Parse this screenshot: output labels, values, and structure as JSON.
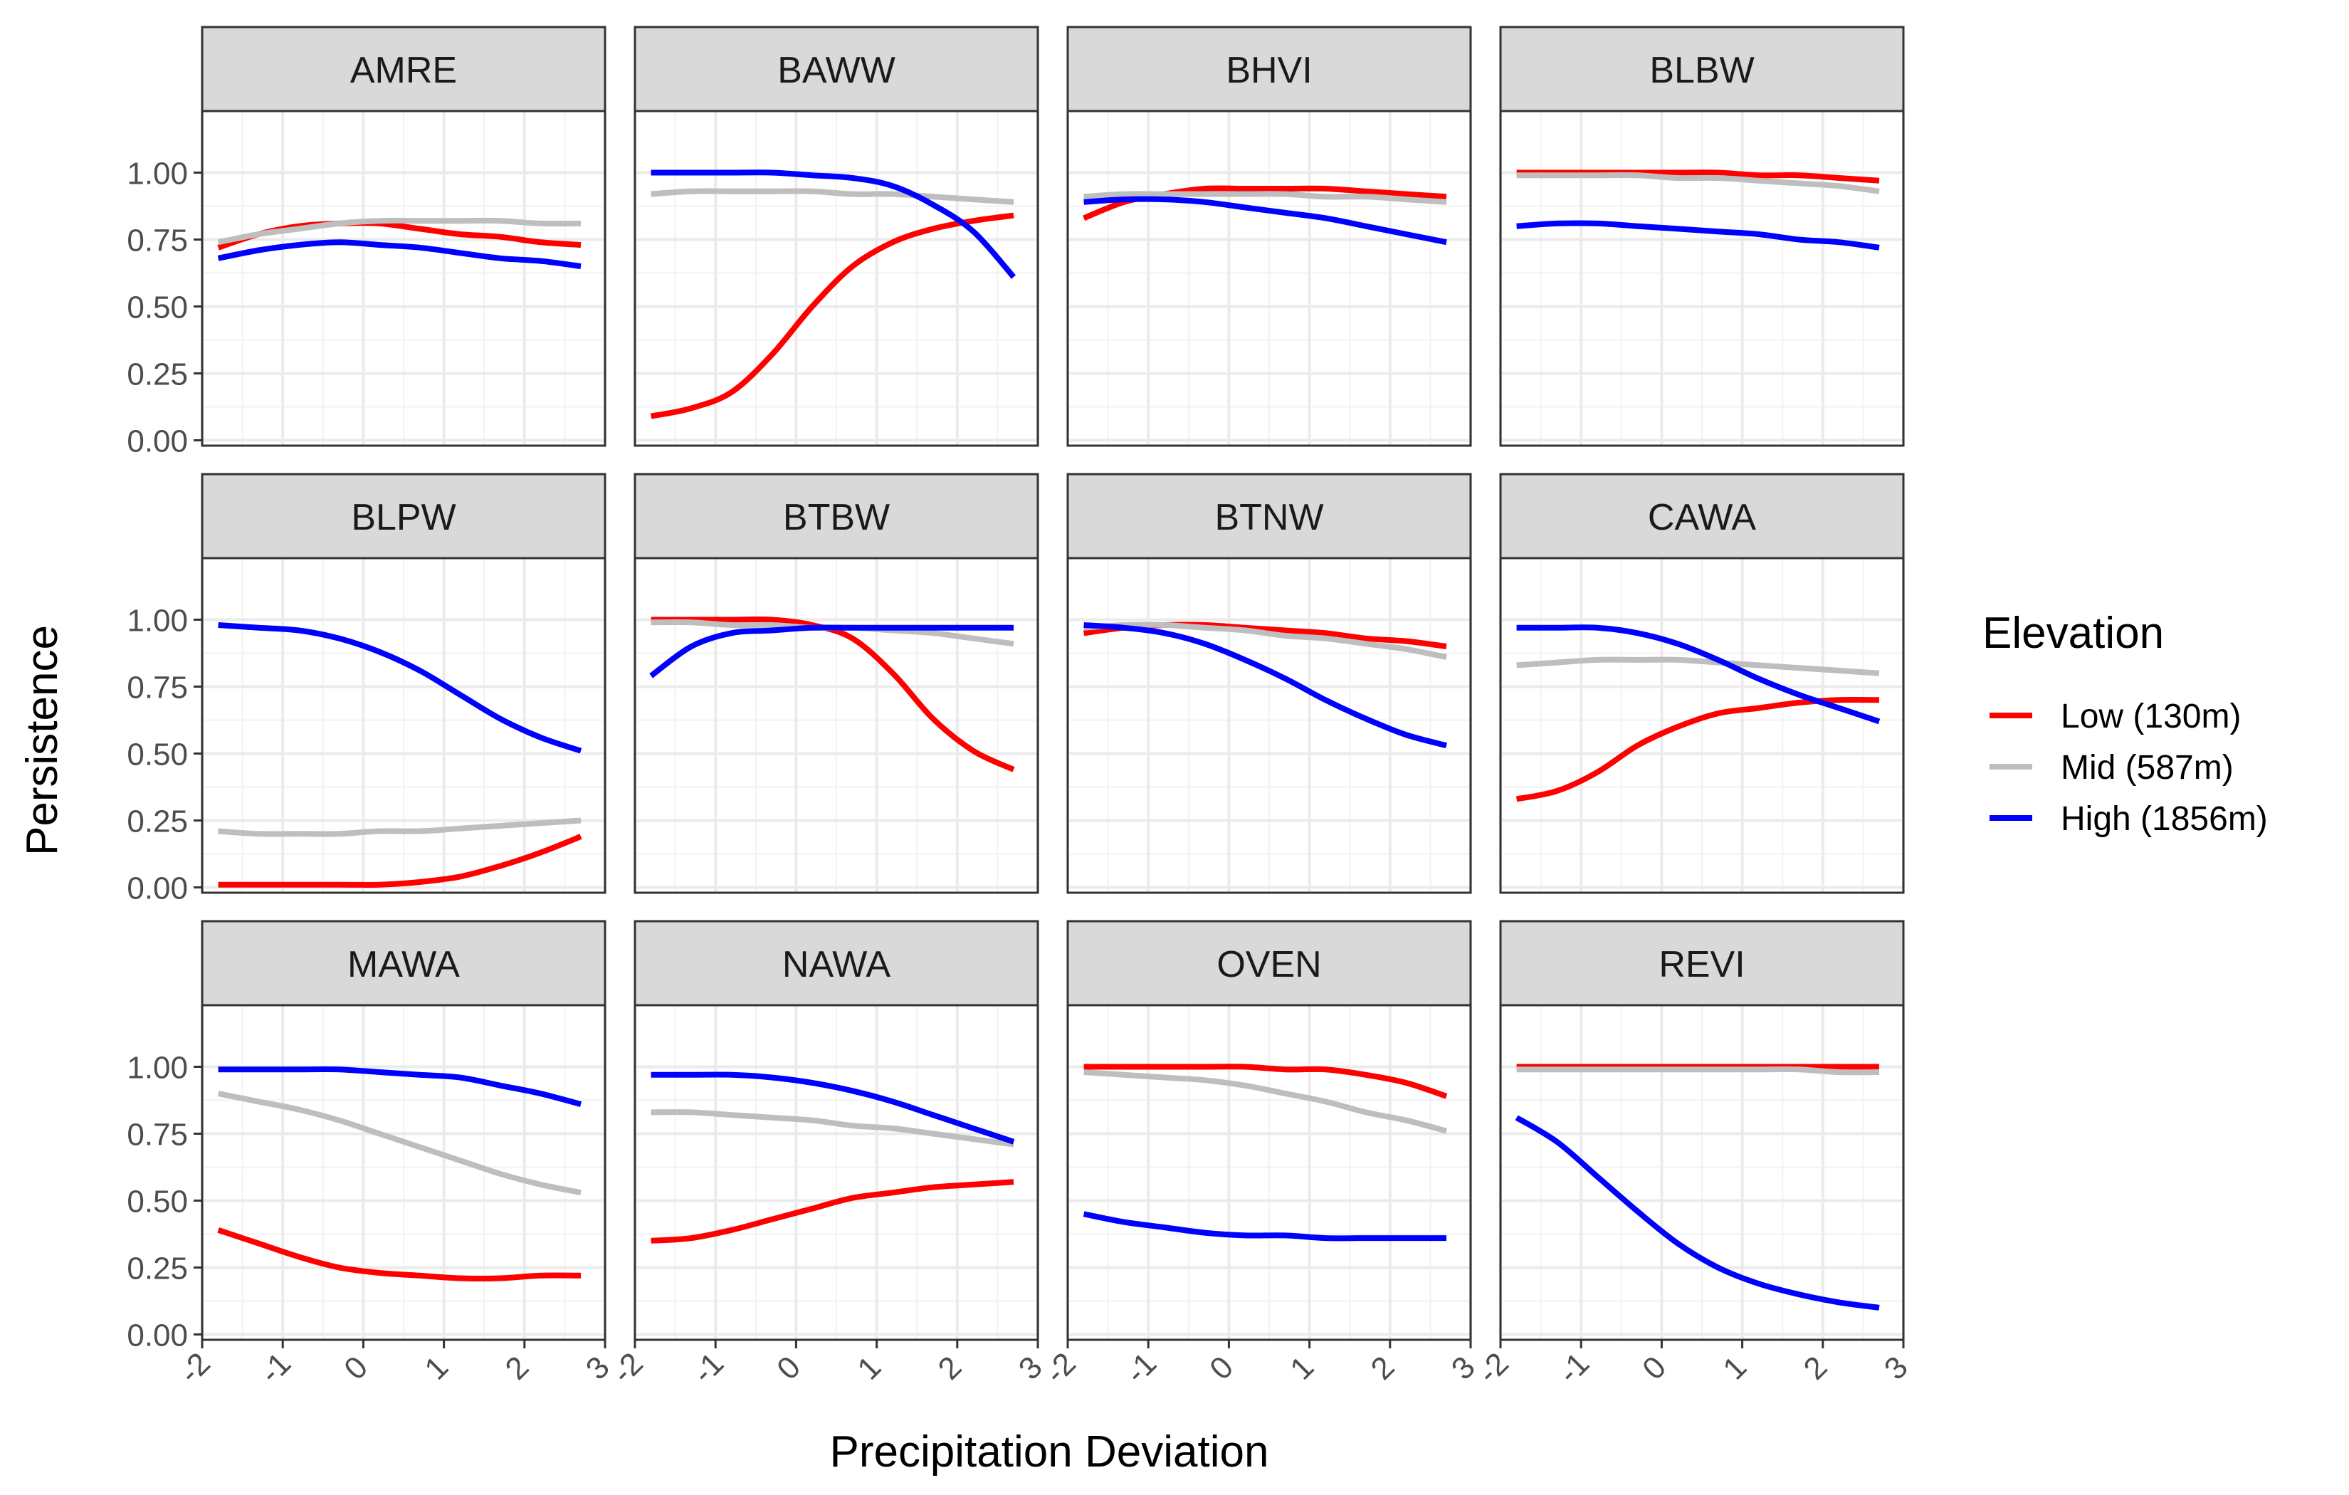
{
  "chart_data": {
    "type": "line",
    "layout": "facet_wrap 3x4",
    "ylabel": "Persistence",
    "xlabel": "Precipitation Deviation",
    "xlim": [
      -2,
      3
    ],
    "ylim": [
      0,
      1
    ],
    "x_ticks": [
      -2,
      -1,
      0,
      1,
      2,
      3
    ],
    "y_ticks": [
      "0.00",
      "0.25",
      "0.50",
      "0.75",
      "1.00"
    ],
    "x_tick_labels": [
      "-2",
      "-1",
      "0",
      "1",
      "2",
      "3"
    ],
    "grid": true,
    "legend": {
      "title": "Elevation",
      "placement": "right",
      "entries": [
        "Low (130m)",
        "Mid (587m)",
        "High (1856m)"
      ]
    },
    "series_colors": {
      "Low (130m)": "#ff0000",
      "Mid (587m)": "#bebebe",
      "High (1856m)": "#0000ff"
    },
    "x": [
      -1.8,
      -1.3,
      -0.8,
      -0.3,
      0.2,
      0.7,
      1.2,
      1.7,
      2.2,
      2.7
    ],
    "facets": [
      {
        "name": "AMRE",
        "series": [
          {
            "name": "Low (130m)",
            "values": [
              0.72,
              0.77,
              0.8,
              0.81,
              0.81,
              0.79,
              0.77,
              0.76,
              0.74,
              0.73
            ]
          },
          {
            "name": "Mid (587m)",
            "values": [
              0.74,
              0.77,
              0.79,
              0.81,
              0.82,
              0.82,
              0.82,
              0.82,
              0.81,
              0.81
            ]
          },
          {
            "name": "High (1856m)",
            "values": [
              0.68,
              0.71,
              0.73,
              0.74,
              0.73,
              0.72,
              0.7,
              0.68,
              0.67,
              0.65
            ]
          }
        ]
      },
      {
        "name": "BAWW",
        "series": [
          {
            "name": "Low (130m)",
            "values": [
              0.09,
              0.12,
              0.18,
              0.32,
              0.5,
              0.65,
              0.74,
              0.79,
              0.82,
              0.84
            ]
          },
          {
            "name": "Mid (587m)",
            "values": [
              0.92,
              0.93,
              0.93,
              0.93,
              0.93,
              0.92,
              0.92,
              0.91,
              0.9,
              0.89
            ]
          },
          {
            "name": "High (1856m)",
            "values": [
              1.0,
              1.0,
              1.0,
              1.0,
              0.99,
              0.98,
              0.95,
              0.88,
              0.78,
              0.61
            ]
          }
        ]
      },
      {
        "name": "BHVI",
        "series": [
          {
            "name": "Low (130m)",
            "values": [
              0.83,
              0.89,
              0.92,
              0.94,
              0.94,
              0.94,
              0.94,
              0.93,
              0.92,
              0.91
            ]
          },
          {
            "name": "Mid (587m)",
            "values": [
              0.91,
              0.92,
              0.92,
              0.92,
              0.92,
              0.92,
              0.91,
              0.91,
              0.9,
              0.89
            ]
          },
          {
            "name": "High (1856m)",
            "values": [
              0.89,
              0.9,
              0.9,
              0.89,
              0.87,
              0.85,
              0.83,
              0.8,
              0.77,
              0.74
            ]
          }
        ]
      },
      {
        "name": "BLBW",
        "series": [
          {
            "name": "Low (130m)",
            "values": [
              1.0,
              1.0,
              1.0,
              1.0,
              1.0,
              1.0,
              0.99,
              0.99,
              0.98,
              0.97
            ]
          },
          {
            "name": "Mid (587m)",
            "values": [
              0.99,
              0.99,
              0.99,
              0.99,
              0.98,
              0.98,
              0.97,
              0.96,
              0.95,
              0.93
            ]
          },
          {
            "name": "High (1856m)",
            "values": [
              0.8,
              0.81,
              0.81,
              0.8,
              0.79,
              0.78,
              0.77,
              0.75,
              0.74,
              0.72
            ]
          }
        ]
      },
      {
        "name": "BLPW",
        "series": [
          {
            "name": "Low (130m)",
            "values": [
              0.01,
              0.01,
              0.01,
              0.01,
              0.01,
              0.02,
              0.04,
              0.08,
              0.13,
              0.19
            ]
          },
          {
            "name": "Mid (587m)",
            "values": [
              0.21,
              0.2,
              0.2,
              0.2,
              0.21,
              0.21,
              0.22,
              0.23,
              0.24,
              0.25
            ]
          },
          {
            "name": "High (1856m)",
            "values": [
              0.98,
              0.97,
              0.96,
              0.93,
              0.88,
              0.81,
              0.72,
              0.63,
              0.56,
              0.51
            ]
          }
        ]
      },
      {
        "name": "BTBW",
        "series": [
          {
            "name": "Low (130m)",
            "values": [
              1.0,
              1.0,
              1.0,
              1.0,
              0.98,
              0.93,
              0.8,
              0.63,
              0.51,
              0.44
            ]
          },
          {
            "name": "Mid (587m)",
            "values": [
              0.99,
              0.99,
              0.98,
              0.98,
              0.97,
              0.97,
              0.96,
              0.95,
              0.93,
              0.91
            ]
          },
          {
            "name": "High (1856m)",
            "values": [
              0.79,
              0.9,
              0.95,
              0.96,
              0.97,
              0.97,
              0.97,
              0.97,
              0.97,
              0.97
            ]
          }
        ]
      },
      {
        "name": "BTNW",
        "series": [
          {
            "name": "Low (130m)",
            "values": [
              0.95,
              0.97,
              0.98,
              0.98,
              0.97,
              0.96,
              0.95,
              0.93,
              0.92,
              0.9
            ]
          },
          {
            "name": "Mid (587m)",
            "values": [
              0.97,
              0.98,
              0.98,
              0.97,
              0.96,
              0.94,
              0.93,
              0.91,
              0.89,
              0.86
            ]
          },
          {
            "name": "High (1856m)",
            "values": [
              0.98,
              0.97,
              0.95,
              0.91,
              0.85,
              0.78,
              0.7,
              0.63,
              0.57,
              0.53
            ]
          }
        ]
      },
      {
        "name": "CAWA",
        "series": [
          {
            "name": "Low (130m)",
            "values": [
              0.33,
              0.36,
              0.43,
              0.53,
              0.6,
              0.65,
              0.67,
              0.69,
              0.7,
              0.7
            ]
          },
          {
            "name": "Mid (587m)",
            "values": [
              0.83,
              0.84,
              0.85,
              0.85,
              0.85,
              0.84,
              0.83,
              0.82,
              0.81,
              0.8
            ]
          },
          {
            "name": "High (1856m)",
            "values": [
              0.97,
              0.97,
              0.97,
              0.95,
              0.91,
              0.85,
              0.78,
              0.72,
              0.67,
              0.62
            ]
          }
        ]
      },
      {
        "name": "MAWA",
        "series": [
          {
            "name": "Low (130m)",
            "values": [
              0.39,
              0.34,
              0.29,
              0.25,
              0.23,
              0.22,
              0.21,
              0.21,
              0.22,
              0.22
            ]
          },
          {
            "name": "Mid (587m)",
            "values": [
              0.9,
              0.87,
              0.84,
              0.8,
              0.75,
              0.7,
              0.65,
              0.6,
              0.56,
              0.53
            ]
          },
          {
            "name": "High (1856m)",
            "values": [
              0.99,
              0.99,
              0.99,
              0.99,
              0.98,
              0.97,
              0.96,
              0.93,
              0.9,
              0.86
            ]
          }
        ]
      },
      {
        "name": "NAWA",
        "series": [
          {
            "name": "Low (130m)",
            "values": [
              0.35,
              0.36,
              0.39,
              0.43,
              0.47,
              0.51,
              0.53,
              0.55,
              0.56,
              0.57
            ]
          },
          {
            "name": "Mid (587m)",
            "values": [
              0.83,
              0.83,
              0.82,
              0.81,
              0.8,
              0.78,
              0.77,
              0.75,
              0.73,
              0.71
            ]
          },
          {
            "name": "High (1856m)",
            "values": [
              0.97,
              0.97,
              0.97,
              0.96,
              0.94,
              0.91,
              0.87,
              0.82,
              0.77,
              0.72
            ]
          }
        ]
      },
      {
        "name": "OVEN",
        "series": [
          {
            "name": "Low (130m)",
            "values": [
              1.0,
              1.0,
              1.0,
              1.0,
              1.0,
              0.99,
              0.99,
              0.97,
              0.94,
              0.89
            ]
          },
          {
            "name": "Mid (587m)",
            "values": [
              0.98,
              0.97,
              0.96,
              0.95,
              0.93,
              0.9,
              0.87,
              0.83,
              0.8,
              0.76
            ]
          },
          {
            "name": "High (1856m)",
            "values": [
              0.45,
              0.42,
              0.4,
              0.38,
              0.37,
              0.37,
              0.36,
              0.36,
              0.36,
              0.36
            ]
          }
        ]
      },
      {
        "name": "REVI",
        "series": [
          {
            "name": "Low (130m)",
            "values": [
              1.0,
              1.0,
              1.0,
              1.0,
              1.0,
              1.0,
              1.0,
              1.0,
              1.0,
              1.0
            ]
          },
          {
            "name": "Mid (587m)",
            "values": [
              0.99,
              0.99,
              0.99,
              0.99,
              0.99,
              0.99,
              0.99,
              0.99,
              0.98,
              0.98
            ]
          },
          {
            "name": "High (1856m)",
            "values": [
              0.81,
              0.72,
              0.59,
              0.46,
              0.34,
              0.25,
              0.19,
              0.15,
              0.12,
              0.1
            ]
          }
        ]
      }
    ]
  }
}
